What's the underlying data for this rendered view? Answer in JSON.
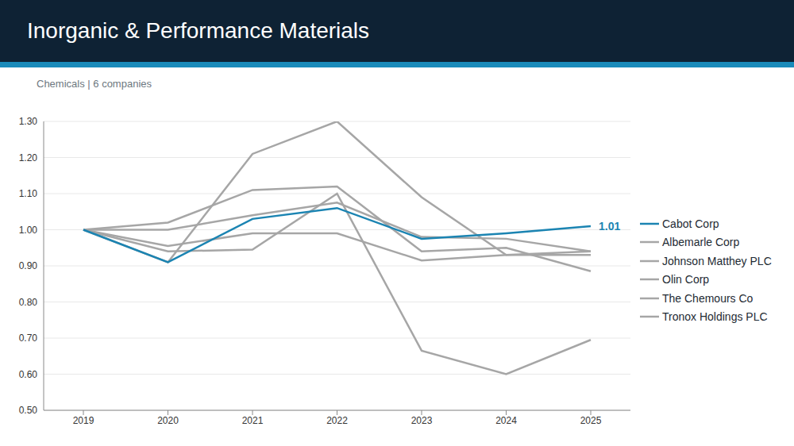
{
  "chart_data": {
    "type": "line",
    "title": "Inorganic & Performance Materials",
    "subtitle": "Chemicals | 6 companies",
    "categories": [
      "2019",
      "2020",
      "2021",
      "2022",
      "2023",
      "2024",
      "2025"
    ],
    "series": [
      {
        "name": "Cabot Corp",
        "color": "#1b84b2",
        "values": [
          1.0,
          0.91,
          1.03,
          1.06,
          0.975,
          0.99,
          1.01
        ],
        "value_labels": [
          null,
          null,
          null,
          null,
          null,
          null,
          "1.01"
        ]
      },
      {
        "name": "Albemarle Corp",
        "color": "#a6a6a6",
        "values": [
          1.0,
          0.94,
          0.945,
          1.1,
          0.665,
          0.6,
          0.695
        ]
      },
      {
        "name": "Johnson Matthey PLC",
        "color": "#a6a6a6",
        "values": [
          1.0,
          1.0,
          1.04,
          1.075,
          0.98,
          0.975,
          0.94
        ]
      },
      {
        "name": "Olin Corp",
        "color": "#a6a6a6",
        "values": [
          1.0,
          1.02,
          1.11,
          1.12,
          0.94,
          0.95,
          0.885
        ]
      },
      {
        "name": "The Chemours Co",
        "color": "#a6a6a6",
        "values": [
          1.0,
          0.955,
          0.99,
          0.99,
          0.915,
          0.93,
          0.93
        ]
      },
      {
        "name": "Tronox Holdings PLC",
        "color": "#a6a6a6",
        "values": [
          1.0,
          0.91,
          1.21,
          1.3,
          1.09,
          0.93,
          0.94
        ]
      }
    ],
    "ylim": [
      0.5,
      1.3
    ],
    "yticks": [
      {
        "value": 0.5,
        "label": "0.50"
      },
      {
        "value": 0.6,
        "label": "0.60"
      },
      {
        "value": 0.7,
        "label": "0.70"
      },
      {
        "value": 0.8,
        "label": "0.80"
      },
      {
        "value": 0.9,
        "label": "0.90"
      },
      {
        "value": 1,
        "label": "1.00"
      },
      {
        "value": 1.1,
        "label": "1.10"
      },
      {
        "value": 1.2,
        "label": "1.20"
      },
      {
        "value": 1.3,
        "label": "1.30"
      }
    ],
    "grid": true,
    "legend": "right"
  }
}
